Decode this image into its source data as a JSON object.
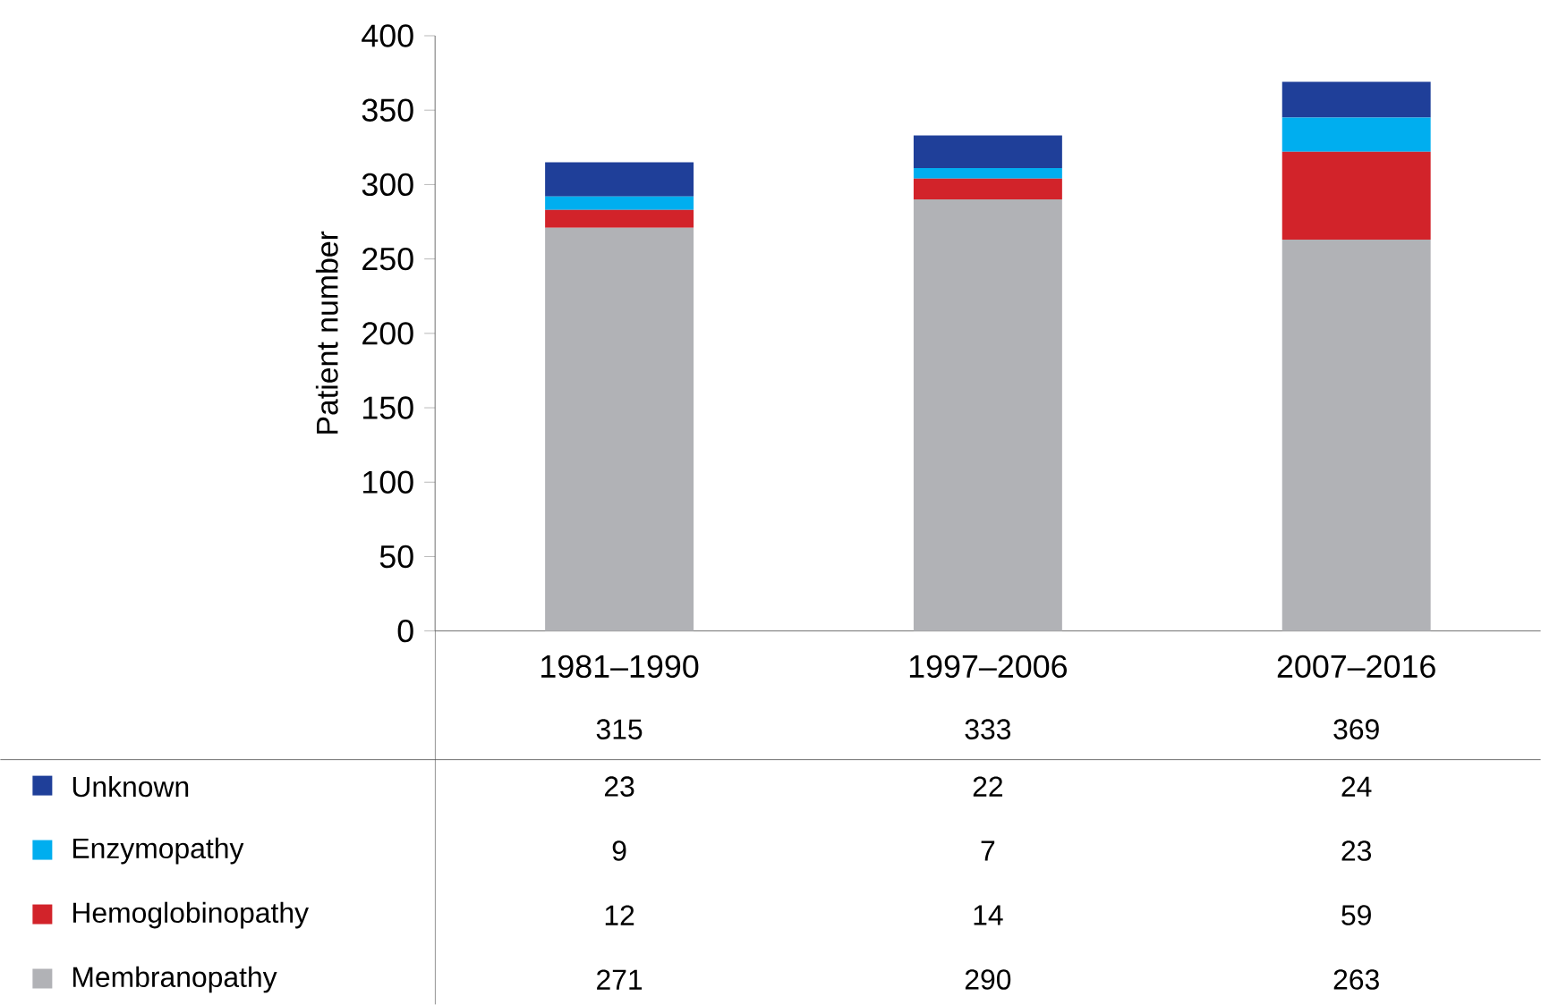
{
  "chart_data": {
    "type": "bar",
    "stacked": true,
    "ylabel": "Patient number",
    "categories": [
      "1981–1990",
      "1997–2006",
      "2007–2016"
    ],
    "series": [
      {
        "name": "Membranopathy",
        "color": "#b1b2b6",
        "values": [
          271,
          290,
          263
        ]
      },
      {
        "name": "Hemoglobinopathy",
        "color": "#d2232a",
        "values": [
          12,
          14,
          59
        ]
      },
      {
        "name": "Enzymopathy",
        "color": "#00aeef",
        "values": [
          9,
          7,
          23
        ]
      },
      {
        "name": "Unknown",
        "color": "#1f3f99",
        "values": [
          23,
          22,
          24
        ]
      }
    ],
    "ylim": [
      0,
      400
    ],
    "yticks": [
      0,
      50,
      100,
      150,
      200,
      250,
      300,
      350,
      400
    ],
    "legend": "bottom",
    "data_labels": true,
    "totals": [
      "315",
      "333",
      "369"
    ]
  }
}
